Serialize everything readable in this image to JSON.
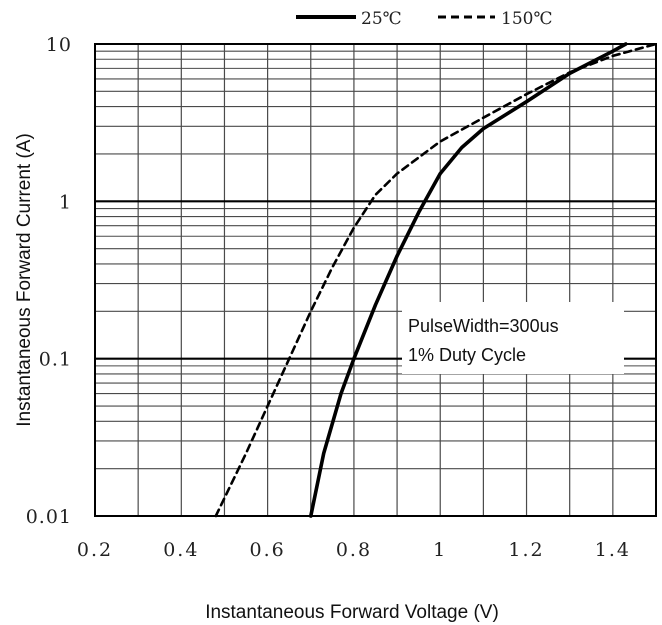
{
  "chart_data": {
    "type": "line",
    "xlabel": "Instantaneous Forward Voltage (V)",
    "ylabel": "Instantaneous Forward Current (A)",
    "xlim": [
      0.2,
      1.5
    ],
    "ylim": [
      0.01,
      10
    ],
    "yscale": "log",
    "grid": true,
    "legend_position": "top",
    "x_ticks": [
      {
        "value": 0.2,
        "label": "0.2"
      },
      {
        "value": 0.4,
        "label": "0.4"
      },
      {
        "value": 0.6,
        "label": "0.6"
      },
      {
        "value": 0.8,
        "label": "0.8"
      },
      {
        "value": 1.0,
        "label": "1"
      },
      {
        "value": 1.2,
        "label": "1.2"
      },
      {
        "value": 1.4,
        "label": "1.4"
      }
    ],
    "y_ticks": [
      {
        "value": 0.01,
        "label": "0.01"
      },
      {
        "value": 0.1,
        "label": "0.1"
      },
      {
        "value": 1,
        "label": "1"
      },
      {
        "value": 10,
        "label": "10"
      }
    ],
    "annotation": [
      "PulseWidth=300us",
      "1% Duty Cycle"
    ],
    "series": [
      {
        "name": "25℃",
        "style": "solid",
        "color": "#000000",
        "x": [
          0.7,
          0.73,
          0.77,
          0.8,
          0.85,
          0.9,
          0.95,
          1.0,
          1.05,
          1.1,
          1.2,
          1.3,
          1.4,
          1.43
        ],
        "y": [
          0.01,
          0.025,
          0.06,
          0.1,
          0.22,
          0.45,
          0.85,
          1.5,
          2.2,
          2.9,
          4.3,
          6.5,
          9.0,
          10.0
        ]
      },
      {
        "name": "150℃",
        "style": "dashed",
        "color": "#000000",
        "x": [
          0.48,
          0.55,
          0.6,
          0.65,
          0.7,
          0.75,
          0.8,
          0.85,
          0.9,
          1.0,
          1.1,
          1.2,
          1.3,
          1.4,
          1.5
        ],
        "y": [
          0.01,
          0.025,
          0.05,
          0.1,
          0.2,
          0.38,
          0.68,
          1.1,
          1.5,
          2.4,
          3.4,
          4.8,
          6.6,
          8.4,
          10.0
        ]
      }
    ]
  }
}
